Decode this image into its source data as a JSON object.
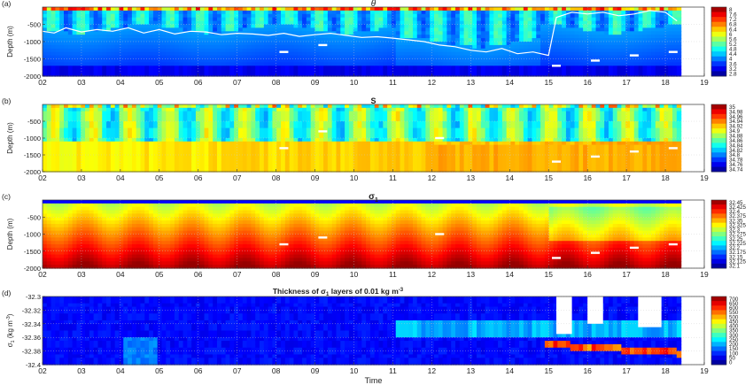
{
  "chart_data": [
    {
      "type": "heatmap",
      "panel_label": "(a)",
      "title": "θ",
      "ylabel": "Depth (m)",
      "xlabel": "",
      "x_ticks": [
        "02",
        "03",
        "04",
        "05",
        "06",
        "07",
        "08",
        "09",
        "10",
        "11",
        "12",
        "13",
        "14",
        "15",
        "16",
        "17",
        "18",
        "19"
      ],
      "y_ticks": [
        "-500",
        "-1000",
        "-1500",
        "-2000"
      ],
      "ylim": [
        -2000,
        0
      ],
      "xlim": [
        2,
        19
      ],
      "data_end": 18.4,
      "colorbar": {
        "ticks": [
          "8",
          "7.6",
          "7.2",
          "6.8",
          "6.4",
          "6",
          "5.6",
          "5.2",
          "4.8",
          "4.4",
          "4",
          "3.6",
          "3.2",
          "2.8"
        ],
        "range": [
          2.8,
          8
        ]
      },
      "mixed_layer_depth": {
        "color": "#ffffff",
        "x": [
          2.0,
          2.3,
          2.6,
          3.0,
          3.4,
          3.8,
          4.2,
          4.6,
          5.0,
          5.4,
          5.8,
          6.2,
          6.6,
          7.0,
          7.4,
          7.8,
          8.2,
          8.6,
          9.0,
          9.4,
          9.8,
          10.2,
          10.6,
          11.0,
          11.4,
          11.8,
          12.2,
          12.6,
          13.0,
          13.4,
          13.8,
          14.2,
          14.6,
          15.0,
          15.2,
          15.6,
          16.0,
          16.4,
          16.8,
          17.2,
          17.6,
          18.0,
          18.3
        ],
        "y": [
          -700,
          -750,
          -600,
          -720,
          -650,
          -700,
          -600,
          -750,
          -650,
          -780,
          -700,
          -720,
          -800,
          -760,
          -780,
          -820,
          -760,
          -850,
          -800,
          -760,
          -820,
          -880,
          -860,
          -900,
          -950,
          -1000,
          -1100,
          -1150,
          -1250,
          -1300,
          -1200,
          -1350,
          -1300,
          -1400,
          -300,
          -150,
          -200,
          -150,
          -250,
          -200,
          -100,
          -150,
          -400
        ]
      },
      "float_markers": [
        {
          "x": 8.2,
          "y": -1300
        },
        {
          "x": 9.2,
          "y": -1100
        },
        {
          "x": 15.2,
          "y": -1700
        },
        {
          "x": 16.2,
          "y": -1550
        },
        {
          "x": 17.2,
          "y": -1400
        },
        {
          "x": 18.2,
          "y": -1300
        }
      ]
    },
    {
      "type": "heatmap",
      "panel_label": "(b)",
      "title": "S",
      "ylabel": "Depth (m)",
      "xlabel": "",
      "x_ticks": [
        "02",
        "03",
        "04",
        "05",
        "06",
        "07",
        "08",
        "09",
        "10",
        "11",
        "12",
        "13",
        "14",
        "15",
        "16",
        "17",
        "18",
        "19"
      ],
      "y_ticks": [
        "-500",
        "-1000",
        "-1500",
        "-2000"
      ],
      "ylim": [
        -2000,
        0
      ],
      "xlim": [
        2,
        19
      ],
      "data_end": 18.4,
      "colorbar": {
        "ticks": [
          "35",
          "34.98",
          "34.96",
          "34.94",
          "34.92",
          "34.9",
          "34.88",
          "34.86",
          "34.84",
          "34.82",
          "34.8",
          "34.78",
          "34.76",
          "34.74"
        ],
        "range": [
          34.74,
          35
        ]
      },
      "float_markers": [
        {
          "x": 8.2,
          "y": -1300
        },
        {
          "x": 9.2,
          "y": -800
        },
        {
          "x": 12.2,
          "y": -1000
        },
        {
          "x": 15.2,
          "y": -1700
        },
        {
          "x": 16.2,
          "y": -1550
        },
        {
          "x": 17.2,
          "y": -1400
        },
        {
          "x": 18.2,
          "y": -1300
        }
      ]
    },
    {
      "type": "heatmap",
      "panel_label": "(c)",
      "title": "σ1",
      "ylabel": "Depth (m)",
      "xlabel": "",
      "x_ticks": [
        "02",
        "03",
        "04",
        "05",
        "06",
        "07",
        "08",
        "09",
        "10",
        "11",
        "12",
        "13",
        "14",
        "15",
        "16",
        "17",
        "18",
        "19"
      ],
      "y_ticks": [
        "-500",
        "-1000",
        "-1500",
        "-2000"
      ],
      "ylim": [
        -2000,
        0
      ],
      "xlim": [
        2,
        19
      ],
      "data_end": 18.4,
      "colorbar": {
        "ticks": [
          "32.45",
          "32.425",
          "32.4",
          "32.375",
          "32.35",
          "32.325",
          "32.3",
          "32.275",
          "32.25",
          "32.225",
          "32.2",
          "32.175",
          "32.15",
          "32.125",
          "32.1"
        ],
        "range": [
          32.1,
          32.45
        ]
      },
      "float_markers": [
        {
          "x": 8.2,
          "y": -1300
        },
        {
          "x": 9.2,
          "y": -1100
        },
        {
          "x": 12.2,
          "y": -1000
        },
        {
          "x": 15.2,
          "y": -1700
        },
        {
          "x": 16.2,
          "y": -1550
        },
        {
          "x": 17.2,
          "y": -1400
        },
        {
          "x": 18.2,
          "y": -1300
        }
      ]
    },
    {
      "type": "heatmap",
      "panel_label": "(d)",
      "title": "Thickness of σ1 layers of 0.01 kg m-3",
      "ylabel": "σ1 (kg m-3)",
      "xlabel": "Time",
      "x_ticks": [
        "02",
        "03",
        "04",
        "05",
        "06",
        "07",
        "08",
        "09",
        "10",
        "11",
        "12",
        "13",
        "14",
        "15",
        "16",
        "17",
        "18",
        "19"
      ],
      "y_ticks": [
        "-32.3",
        "-32.32",
        "-32.34",
        "-32.36",
        "-32.38",
        "-32.4"
      ],
      "ylim": [
        -32.4,
        -32.3
      ],
      "xlim": [
        2,
        19
      ],
      "data_end": 18.4,
      "colorbar": {
        "ticks": [
          "700",
          "650",
          "600",
          "550",
          "500",
          "450",
          "400",
          "350",
          "300",
          "250",
          "200",
          "150",
          "100",
          "50",
          "0"
        ],
        "range": [
          0,
          700
        ]
      }
    }
  ]
}
